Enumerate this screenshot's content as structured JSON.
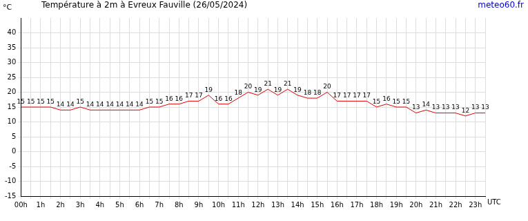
{
  "chart_data": {
    "type": "line",
    "title": "Température à 2m à Evreux Fauville (26/05/2024)",
    "source": "meteo60.fr",
    "y_label": "°C",
    "x_label": "UTC",
    "categories": [
      "00h",
      null,
      "1h",
      null,
      "2h",
      null,
      "3h",
      null,
      "4h",
      null,
      "5h",
      null,
      "6h",
      null,
      "7h",
      null,
      "8h",
      null,
      "9h",
      null,
      "10h",
      null,
      "11h",
      null,
      "12h",
      null,
      "13h",
      null,
      "14h",
      null,
      "15h",
      null,
      "16h",
      null,
      "17h",
      null,
      "18h",
      null,
      "19h",
      null,
      "20h",
      null,
      "21h",
      null,
      "22h",
      null,
      "23h",
      null
    ],
    "values": [
      15,
      15,
      15,
      15,
      14,
      14,
      15,
      14,
      14,
      14,
      14,
      14,
      14,
      15,
      15,
      16,
      16,
      17,
      17,
      19,
      16,
      16,
      18,
      20,
      19,
      21,
      19,
      21,
      19,
      18,
      18,
      20,
      17,
      17,
      17,
      17,
      15,
      16,
      15,
      15,
      13,
      14,
      13,
      13,
      13,
      12,
      13,
      13
    ],
    "color": "#e00000",
    "ylim": [
      -15,
      45
    ],
    "yticks": [
      -15,
      -10,
      -5,
      0,
      5,
      10,
      15,
      20,
      25,
      30,
      35,
      40
    ],
    "grid": true,
    "data_labels": true
  }
}
